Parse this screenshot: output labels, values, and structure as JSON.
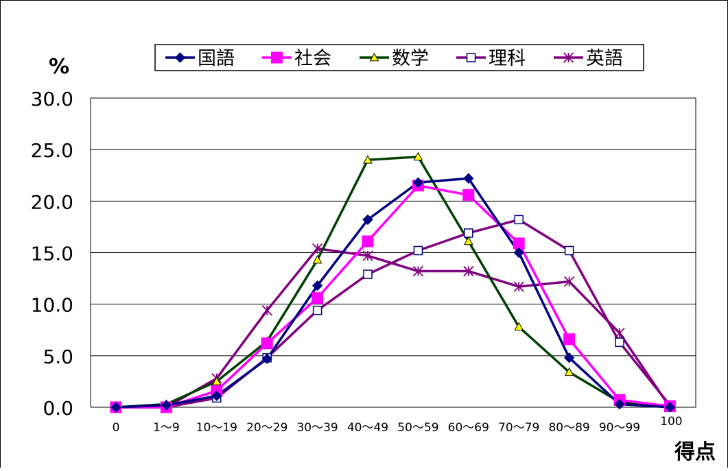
{
  "chart_data": {
    "type": "line",
    "title": "",
    "ylabel": "%",
    "xlabel": "得点",
    "ylim": [
      0,
      30
    ],
    "yticks": [
      "0.0",
      "5.0",
      "10.0",
      "15.0",
      "20.0",
      "25.0",
      "30.0"
    ],
    "grid": true,
    "legend_position": "top",
    "categories": [
      "0",
      "1～9",
      "10～19",
      "20～29",
      "30～39",
      "40～49",
      "50～59",
      "60～69",
      "70～79",
      "80～89",
      "90～99",
      "100"
    ],
    "series": [
      {
        "name": "国語",
        "color": "#000080",
        "marker": "diamond",
        "values": [
          0.0,
          0.2,
          1.1,
          4.7,
          11.8,
          18.2,
          21.8,
          22.2,
          15.0,
          4.8,
          0.3,
          0.0
        ]
      },
      {
        "name": "社会",
        "color": "#ff00ff",
        "marker": "square",
        "values": [
          0.0,
          0.0,
          1.6,
          6.2,
          10.6,
          16.1,
          21.5,
          20.6,
          15.9,
          6.6,
          0.7,
          0.1
        ]
      },
      {
        "name": "数学",
        "color": "#004000",
        "marker": "triangle",
        "values": [
          0.0,
          0.3,
          2.5,
          6.4,
          14.3,
          24.0,
          24.3,
          16.1,
          7.8,
          3.4,
          0.5,
          0.0
        ]
      },
      {
        "name": "理科",
        "color": "#800080",
        "marker": "open-square",
        "values": [
          0.0,
          0.0,
          0.9,
          4.8,
          9.4,
          12.9,
          15.2,
          16.9,
          18.2,
          15.2,
          6.3,
          0.2
        ]
      },
      {
        "name": "英語",
        "color": "#800080",
        "marker": "asterisk",
        "values": [
          0.0,
          0.0,
          2.8,
          9.4,
          15.4,
          14.7,
          13.2,
          13.2,
          11.7,
          12.2,
          7.2,
          0.0
        ]
      }
    ]
  }
}
